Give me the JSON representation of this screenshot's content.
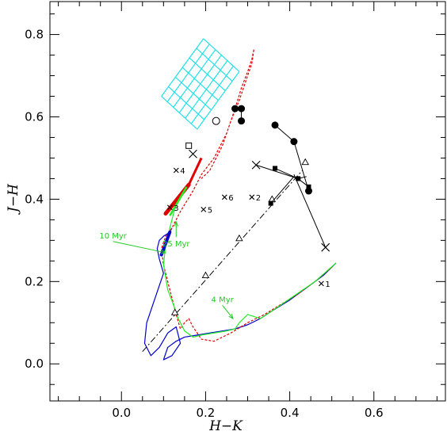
{
  "chart_data": {
    "type": "line",
    "xlabel": "H−K",
    "ylabel": "J−H",
    "xlim": [
      -0.17,
      0.77
    ],
    "ylim": [
      -0.09,
      0.88
    ],
    "x_ticks": [
      "0.0",
      "0.2",
      "0.4",
      "0.6"
    ],
    "y_ticks": [
      "0.0",
      "0.2",
      "0.4",
      "0.6",
      "0.8"
    ],
    "x_tick_values": [
      0.0,
      0.2,
      0.4,
      0.6
    ],
    "y_tick_values": [
      0.0,
      0.2,
      0.4,
      0.6,
      0.8
    ],
    "grid": false,
    "colors": {
      "blue": "#0000cc",
      "red": "#e00000",
      "green": "#22ee22",
      "cyan": "#22e0e8",
      "black": "#000000"
    },
    "annotations": [
      {
        "text": "10 Myr",
        "x": -0.02,
        "y": 0.305,
        "arrow_to": [
          0.105,
          0.27
        ],
        "color": "#22cc22"
      },
      {
        "text": "25 Myr",
        "x": 0.13,
        "y": 0.285,
        "arrow_to": [
          0.13,
          0.345
        ],
        "color": "#22cc22"
      },
      {
        "text": "4 Myr",
        "x": 0.24,
        "y": 0.15,
        "arrow_to": [
          0.265,
          0.11
        ],
        "color": "#22cc22"
      }
    ],
    "labeled_points": [
      {
        "label": "1",
        "x": 0.475,
        "y": 0.195
      },
      {
        "label": "2",
        "x": 0.31,
        "y": 0.405
      },
      {
        "label": "3",
        "x": 0.115,
        "y": 0.38
      },
      {
        "label": "4",
        "x": 0.13,
        "y": 0.47
      },
      {
        "label": "5",
        "x": 0.195,
        "y": 0.375
      },
      {
        "label": "6",
        "x": 0.245,
        "y": 0.405
      }
    ],
    "reddening_vector": {
      "x": [
        0.05,
        0.43
      ],
      "y": [
        0.03,
        0.47
      ],
      "triangles_x": [
        0.127,
        0.2,
        0.28,
        0.358,
        0.437
      ],
      "triangles_y": [
        0.125,
        0.215,
        0.305,
        0.4,
        0.49
      ]
    },
    "circle_track": {
      "x": [
        0.365,
        0.41,
        0.445
      ],
      "y": [
        0.58,
        0.54,
        0.42
      ]
    },
    "circle_pair": {
      "x": [
        0.27,
        0.285,
        0.285
      ],
      "y": [
        0.62,
        0.62,
        0.59
      ]
    },
    "x_track_upper": {
      "x": [
        0.32,
        0.42,
        0.44
      ],
      "y": [
        0.483,
        0.45,
        0.455
      ]
    },
    "x_track_lower": {
      "x": [
        0.41,
        0.485
      ],
      "y": [
        0.46,
        0.283
      ]
    },
    "square_track": {
      "x": [
        0.365,
        0.42,
        0.445
      ],
      "y": [
        0.475,
        0.45,
        0.43
      ]
    },
    "square_lone": {
      "x": 0.355,
      "y": 0.39
    },
    "open_square": {
      "x": 0.16,
      "y": 0.53
    },
    "open_circle": {
      "x": 0.225,
      "y": 0.59
    },
    "big_cross": {
      "x": 0.17,
      "y": 0.51
    },
    "cyan_grid": {
      "u_lines": 7,
      "v_lines": 7
    },
    "series": [
      {
        "color": "#0000cc",
        "x": [
          0.51,
          0.48,
          0.44,
          0.4,
          0.36,
          0.33,
          0.3,
          0.27,
          0.24,
          0.21,
          0.18,
          0.15,
          0.13,
          0.11,
          0.1,
          0.12,
          0.14,
          0.13,
          0.11,
          0.09,
          0.07,
          0.055,
          0.06,
          0.08,
          0.1,
          0.09,
          0.085,
          0.09,
          0.1,
          0.115,
          0.12
        ],
        "y": [
          0.245,
          0.215,
          0.185,
          0.155,
          0.13,
          0.11,
          0.095,
          0.085,
          0.08,
          0.075,
          0.07,
          0.065,
          0.055,
          0.04,
          0.01,
          0.02,
          0.05,
          0.09,
          0.075,
          0.04,
          0.02,
          0.05,
          0.1,
          0.16,
          0.22,
          0.255,
          0.28,
          0.3,
          0.31,
          0.32,
          0.33
        ]
      },
      {
        "color": "#e00000",
        "dash": true,
        "x": [
          0.5,
          0.46,
          0.42,
          0.38,
          0.34,
          0.3,
          0.26,
          0.22,
          0.19,
          0.17,
          0.16,
          0.15,
          0.14,
          0.13,
          0.12,
          0.11,
          0.1,
          0.095,
          0.105,
          0.12,
          0.14,
          0.17,
          0.19,
          0.22,
          0.25,
          0.27,
          0.285,
          0.3,
          0.31,
          0.315,
          0.31,
          0.3,
          0.28,
          0.26,
          0.24,
          0.225,
          0.21,
          0.19
        ],
        "y": [
          0.235,
          0.2,
          0.17,
          0.145,
          0.12,
          0.1,
          0.075,
          0.055,
          0.06,
          0.09,
          0.11,
          0.1,
          0.085,
          0.12,
          0.16,
          0.2,
          0.24,
          0.28,
          0.31,
          0.33,
          0.37,
          0.42,
          0.46,
          0.5,
          0.56,
          0.62,
          0.67,
          0.71,
          0.74,
          0.765,
          0.73,
          0.7,
          0.64,
          0.59,
          0.53,
          0.5,
          0.47,
          0.45
        ]
      },
      {
        "color": "#22ee22",
        "x": [
          0.51,
          0.46,
          0.41,
          0.36,
          0.33,
          0.3,
          0.28,
          0.27,
          0.25,
          0.22,
          0.19,
          0.17,
          0.15,
          0.135,
          0.125,
          0.11,
          0.1,
          0.105,
          0.115,
          0.125,
          0.13
        ],
        "y": [
          0.245,
          0.2,
          0.165,
          0.13,
          0.11,
          0.12,
          0.1,
          0.085,
          0.08,
          0.075,
          0.07,
          0.065,
          0.08,
          0.11,
          0.14,
          0.18,
          0.24,
          0.29,
          0.33,
          0.37,
          0.4
        ]
      }
    ]
  }
}
